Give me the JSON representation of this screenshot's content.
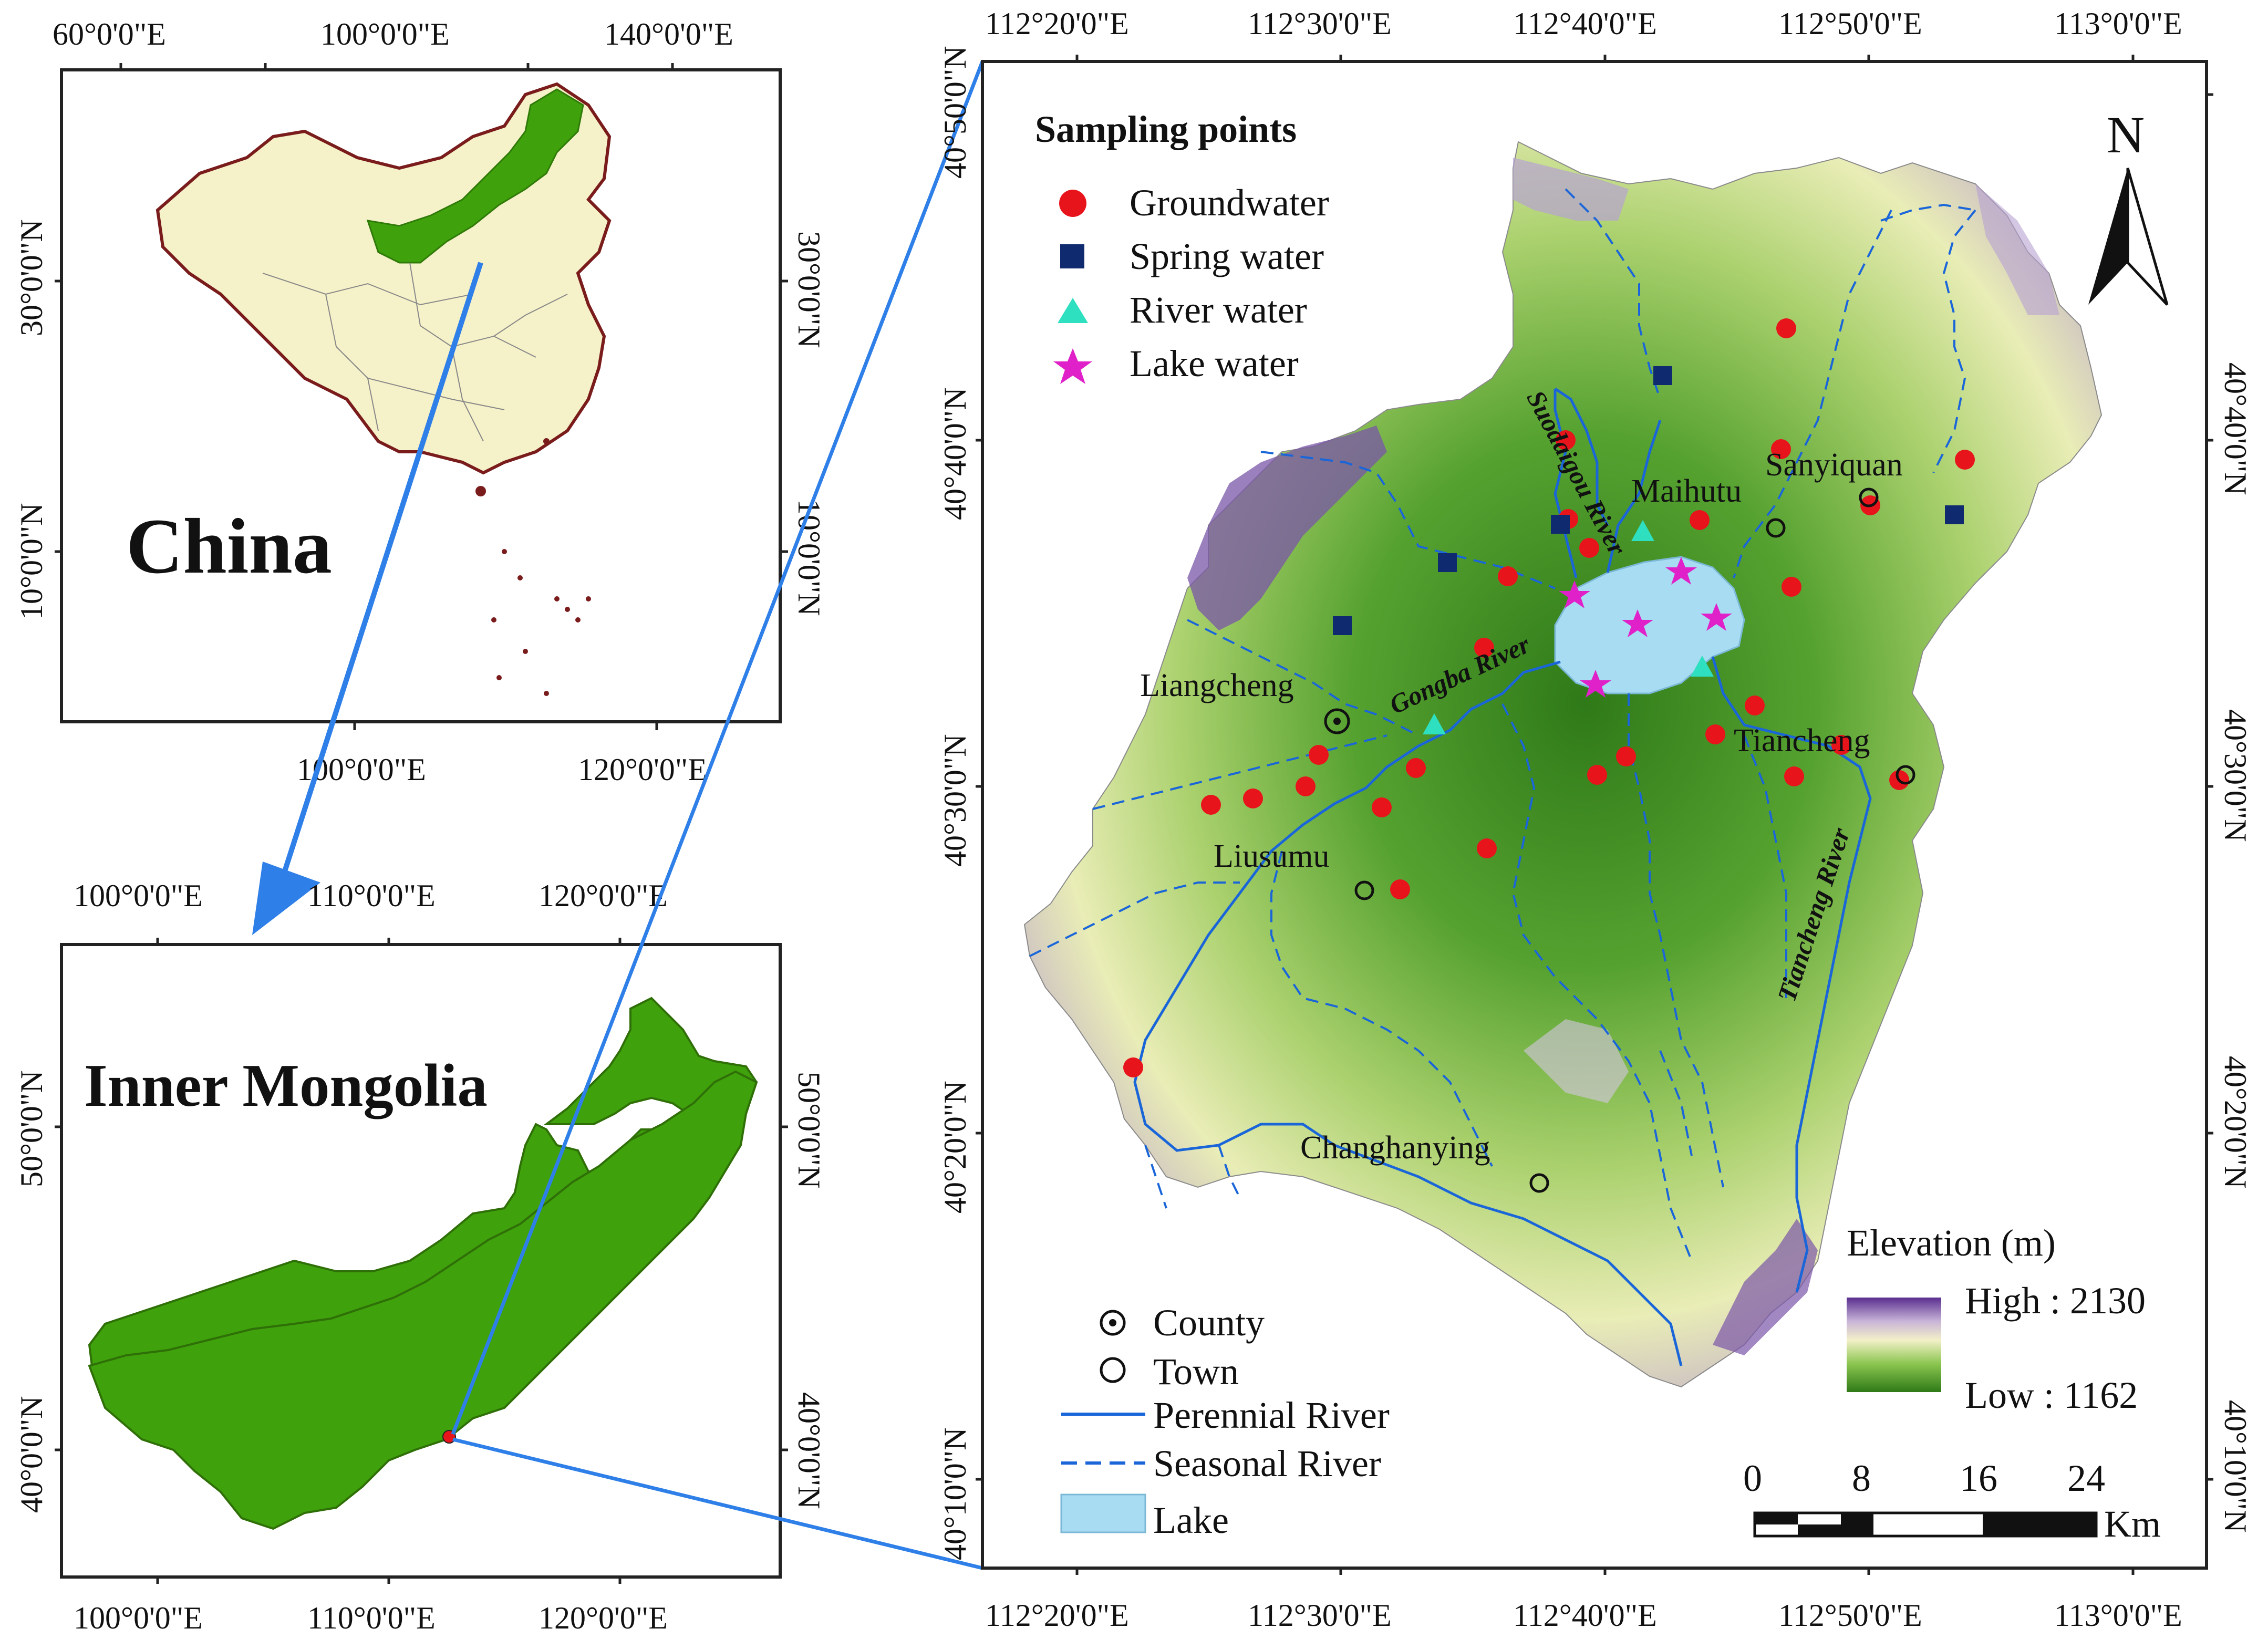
{
  "colors": {
    "china_fill": "#f5f1c9",
    "china_border": "#7a1c1c",
    "inner_mongolia": "#3fa10b",
    "river": "#1a66d9",
    "lake": "#a8dcf2",
    "groundwater": "#e8141b",
    "spring": "#0f2a6e",
    "river_water": "#2fe0c0",
    "lake_water": "#e020c8",
    "connector": "#2f7fe8",
    "elev_high": "#5a2e8f",
    "elev_low": "#2f7a18"
  },
  "china_panel": {
    "title": "China",
    "top_ticks": [
      "60°0'0\"E",
      "100°0'0\"E",
      "140°0'0\"E"
    ],
    "bottom_ticks": [
      "100°0'0\"E",
      "120°0'0\"E"
    ],
    "left_ticks": [
      "30°0'0\"N",
      "10°0'0\"N"
    ],
    "right_ticks": [
      "30°0'0\"N",
      "10°0'0\"N"
    ]
  },
  "inner_mongolia_panel": {
    "title": "Inner Mongolia",
    "top_ticks": [
      "100°0'0\"E",
      "110°0'0\"E",
      "120°0'0\"E"
    ],
    "bottom_ticks": [
      "100°0'0\"E",
      "110°0'0\"E",
      "120°0'0\"E"
    ],
    "left_ticks": [
      "50°0'0\"N",
      "40°0'0\"N"
    ],
    "right_ticks": [
      "50°0'0\"N",
      "40°0'0\"N"
    ]
  },
  "study_panel": {
    "top_ticks": [
      "112°20'0\"E",
      "112°30'0\"E",
      "112°40'0\"E",
      "112°50'0\"E",
      "113°0'0\"E"
    ],
    "bottom_ticks": [
      "112°20'0\"E",
      "112°30'0\"E",
      "112°40'0\"E",
      "112°50'0\"E",
      "113°0'0\"E"
    ],
    "left_ticks": [
      "40°50'0\"N",
      "40°40'0\"N",
      "40°30'0\"N",
      "40°20'0\"N",
      "40°10'0\"N"
    ],
    "right_ticks": [
      "40°40'0\"N",
      "40°30'0\"N",
      "40°20'0\"N",
      "40°10'0\"N"
    ],
    "north_arrow": "N",
    "legend_title": "Sampling points",
    "legend_items": [
      "Groundwater",
      "Spring water",
      "River water",
      "Lake water"
    ],
    "place_names": [
      "Sanyiquan",
      "Maihutu",
      "Liangcheng",
      "Tiancheng",
      "Liusumu",
      "Changhanying"
    ],
    "river_names": [
      "Suodaigou River",
      "Gongba River",
      "Tiancheng River"
    ],
    "lower_legend": [
      "County",
      "Town",
      "Perennial River",
      "Seasonal River",
      "Lake"
    ],
    "elevation_title": "Elevation (m)",
    "elevation_high": "High : 2130",
    "elevation_low": "Low : 1162",
    "scale_labels": [
      "0",
      "8",
      "16",
      "24"
    ],
    "scale_unit": "Km"
  }
}
